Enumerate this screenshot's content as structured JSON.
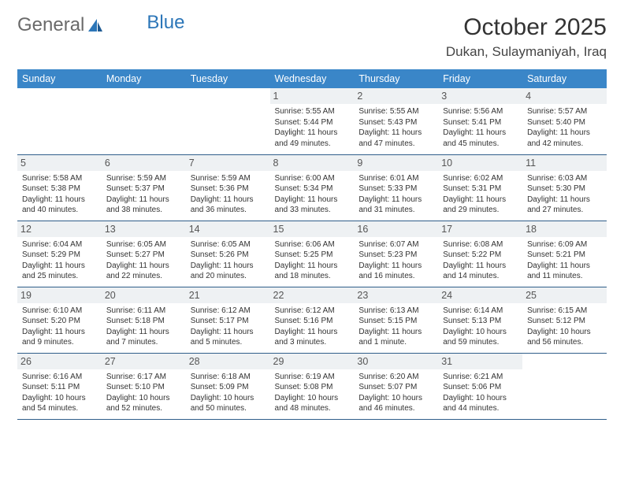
{
  "brand": {
    "part1": "General",
    "part2": "Blue"
  },
  "title": "October 2025",
  "location": "Dukan, Sulaymaniyah, Iraq",
  "theme": {
    "header_bg": "#3a86c8",
    "header_fg": "#ffffff",
    "daynum_bg": "#eef1f3",
    "border": "#2f5e8a",
    "logo_gray": "#6a6a6a",
    "logo_blue": "#2c76b8"
  },
  "weekdays": [
    "Sunday",
    "Monday",
    "Tuesday",
    "Wednesday",
    "Thursday",
    "Friday",
    "Saturday"
  ],
  "weeks": [
    [
      {
        "n": "",
        "sr": "",
        "ss": "",
        "dl": ""
      },
      {
        "n": "",
        "sr": "",
        "ss": "",
        "dl": ""
      },
      {
        "n": "",
        "sr": "",
        "ss": "",
        "dl": ""
      },
      {
        "n": "1",
        "sr": "Sunrise: 5:55 AM",
        "ss": "Sunset: 5:44 PM",
        "dl": "Daylight: 11 hours and 49 minutes."
      },
      {
        "n": "2",
        "sr": "Sunrise: 5:55 AM",
        "ss": "Sunset: 5:43 PM",
        "dl": "Daylight: 11 hours and 47 minutes."
      },
      {
        "n": "3",
        "sr": "Sunrise: 5:56 AM",
        "ss": "Sunset: 5:41 PM",
        "dl": "Daylight: 11 hours and 45 minutes."
      },
      {
        "n": "4",
        "sr": "Sunrise: 5:57 AM",
        "ss": "Sunset: 5:40 PM",
        "dl": "Daylight: 11 hours and 42 minutes."
      }
    ],
    [
      {
        "n": "5",
        "sr": "Sunrise: 5:58 AM",
        "ss": "Sunset: 5:38 PM",
        "dl": "Daylight: 11 hours and 40 minutes."
      },
      {
        "n": "6",
        "sr": "Sunrise: 5:59 AM",
        "ss": "Sunset: 5:37 PM",
        "dl": "Daylight: 11 hours and 38 minutes."
      },
      {
        "n": "7",
        "sr": "Sunrise: 5:59 AM",
        "ss": "Sunset: 5:36 PM",
        "dl": "Daylight: 11 hours and 36 minutes."
      },
      {
        "n": "8",
        "sr": "Sunrise: 6:00 AM",
        "ss": "Sunset: 5:34 PM",
        "dl": "Daylight: 11 hours and 33 minutes."
      },
      {
        "n": "9",
        "sr": "Sunrise: 6:01 AM",
        "ss": "Sunset: 5:33 PM",
        "dl": "Daylight: 11 hours and 31 minutes."
      },
      {
        "n": "10",
        "sr": "Sunrise: 6:02 AM",
        "ss": "Sunset: 5:31 PM",
        "dl": "Daylight: 11 hours and 29 minutes."
      },
      {
        "n": "11",
        "sr": "Sunrise: 6:03 AM",
        "ss": "Sunset: 5:30 PM",
        "dl": "Daylight: 11 hours and 27 minutes."
      }
    ],
    [
      {
        "n": "12",
        "sr": "Sunrise: 6:04 AM",
        "ss": "Sunset: 5:29 PM",
        "dl": "Daylight: 11 hours and 25 minutes."
      },
      {
        "n": "13",
        "sr": "Sunrise: 6:05 AM",
        "ss": "Sunset: 5:27 PM",
        "dl": "Daylight: 11 hours and 22 minutes."
      },
      {
        "n": "14",
        "sr": "Sunrise: 6:05 AM",
        "ss": "Sunset: 5:26 PM",
        "dl": "Daylight: 11 hours and 20 minutes."
      },
      {
        "n": "15",
        "sr": "Sunrise: 6:06 AM",
        "ss": "Sunset: 5:25 PM",
        "dl": "Daylight: 11 hours and 18 minutes."
      },
      {
        "n": "16",
        "sr": "Sunrise: 6:07 AM",
        "ss": "Sunset: 5:23 PM",
        "dl": "Daylight: 11 hours and 16 minutes."
      },
      {
        "n": "17",
        "sr": "Sunrise: 6:08 AM",
        "ss": "Sunset: 5:22 PM",
        "dl": "Daylight: 11 hours and 14 minutes."
      },
      {
        "n": "18",
        "sr": "Sunrise: 6:09 AM",
        "ss": "Sunset: 5:21 PM",
        "dl": "Daylight: 11 hours and 11 minutes."
      }
    ],
    [
      {
        "n": "19",
        "sr": "Sunrise: 6:10 AM",
        "ss": "Sunset: 5:20 PM",
        "dl": "Daylight: 11 hours and 9 minutes."
      },
      {
        "n": "20",
        "sr": "Sunrise: 6:11 AM",
        "ss": "Sunset: 5:18 PM",
        "dl": "Daylight: 11 hours and 7 minutes."
      },
      {
        "n": "21",
        "sr": "Sunrise: 6:12 AM",
        "ss": "Sunset: 5:17 PM",
        "dl": "Daylight: 11 hours and 5 minutes."
      },
      {
        "n": "22",
        "sr": "Sunrise: 6:12 AM",
        "ss": "Sunset: 5:16 PM",
        "dl": "Daylight: 11 hours and 3 minutes."
      },
      {
        "n": "23",
        "sr": "Sunrise: 6:13 AM",
        "ss": "Sunset: 5:15 PM",
        "dl": "Daylight: 11 hours and 1 minute."
      },
      {
        "n": "24",
        "sr": "Sunrise: 6:14 AM",
        "ss": "Sunset: 5:13 PM",
        "dl": "Daylight: 10 hours and 59 minutes."
      },
      {
        "n": "25",
        "sr": "Sunrise: 6:15 AM",
        "ss": "Sunset: 5:12 PM",
        "dl": "Daylight: 10 hours and 56 minutes."
      }
    ],
    [
      {
        "n": "26",
        "sr": "Sunrise: 6:16 AM",
        "ss": "Sunset: 5:11 PM",
        "dl": "Daylight: 10 hours and 54 minutes."
      },
      {
        "n": "27",
        "sr": "Sunrise: 6:17 AM",
        "ss": "Sunset: 5:10 PM",
        "dl": "Daylight: 10 hours and 52 minutes."
      },
      {
        "n": "28",
        "sr": "Sunrise: 6:18 AM",
        "ss": "Sunset: 5:09 PM",
        "dl": "Daylight: 10 hours and 50 minutes."
      },
      {
        "n": "29",
        "sr": "Sunrise: 6:19 AM",
        "ss": "Sunset: 5:08 PM",
        "dl": "Daylight: 10 hours and 48 minutes."
      },
      {
        "n": "30",
        "sr": "Sunrise: 6:20 AM",
        "ss": "Sunset: 5:07 PM",
        "dl": "Daylight: 10 hours and 46 minutes."
      },
      {
        "n": "31",
        "sr": "Sunrise: 6:21 AM",
        "ss": "Sunset: 5:06 PM",
        "dl": "Daylight: 10 hours and 44 minutes."
      },
      {
        "n": "",
        "sr": "",
        "ss": "",
        "dl": ""
      }
    ]
  ]
}
